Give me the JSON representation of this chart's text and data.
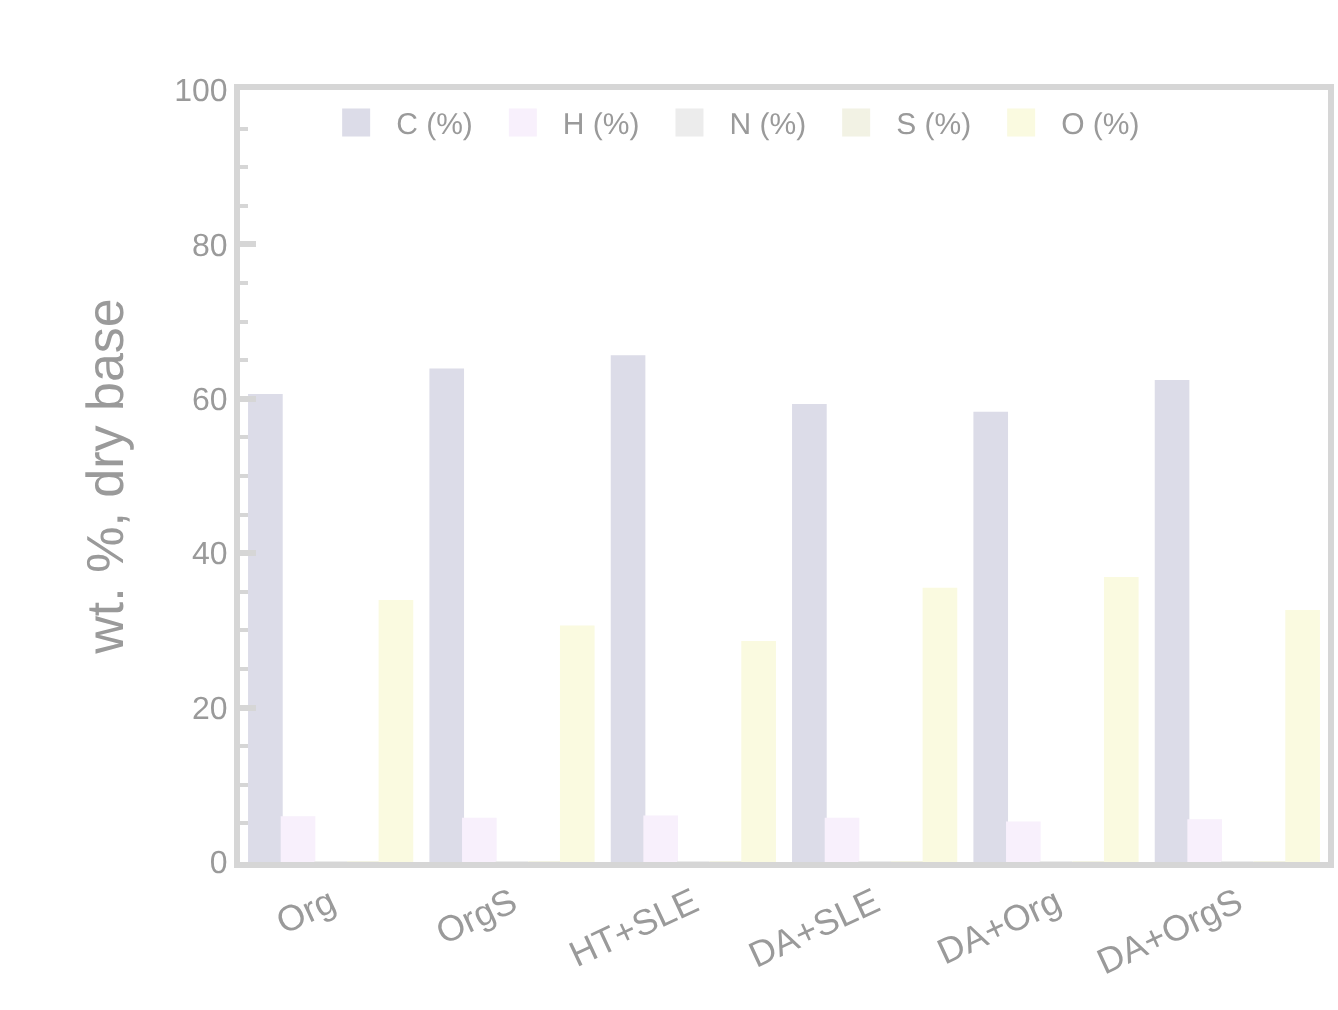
{
  "chart_data": {
    "type": "bar",
    "ylabel": "wt. %, dry base",
    "categories": [
      "Org",
      "OrgS",
      "HT+SLE",
      "DA+SLE",
      "DA+Org",
      "DA+OrgS"
    ],
    "series": [
      {
        "name": "C (%)",
        "color": "#dcdce8",
        "values": [
          60.5,
          63.8,
          65.5,
          59.2,
          58.2,
          62.3
        ]
      },
      {
        "name": "H (%)",
        "color": "#f8f0fc",
        "values": [
          5.8,
          5.6,
          5.9,
          5.6,
          5.1,
          5.4
        ]
      },
      {
        "name": "N (%)",
        "color": "#ececec",
        "values": [
          0,
          0,
          0,
          0,
          0,
          0
        ]
      },
      {
        "name": "S (%)",
        "color": "#f2f2e4",
        "values": [
          0,
          0,
          0,
          0,
          0,
          0
        ]
      },
      {
        "name": "O (%)",
        "color": "#fafae0",
        "values": [
          33.8,
          30.5,
          28.5,
          35.4,
          36.8,
          32.5
        ]
      }
    ],
    "ylim": [
      0,
      100
    ],
    "yticks": [
      0,
      20,
      40,
      60,
      80,
      100
    ],
    "legend": "top"
  }
}
